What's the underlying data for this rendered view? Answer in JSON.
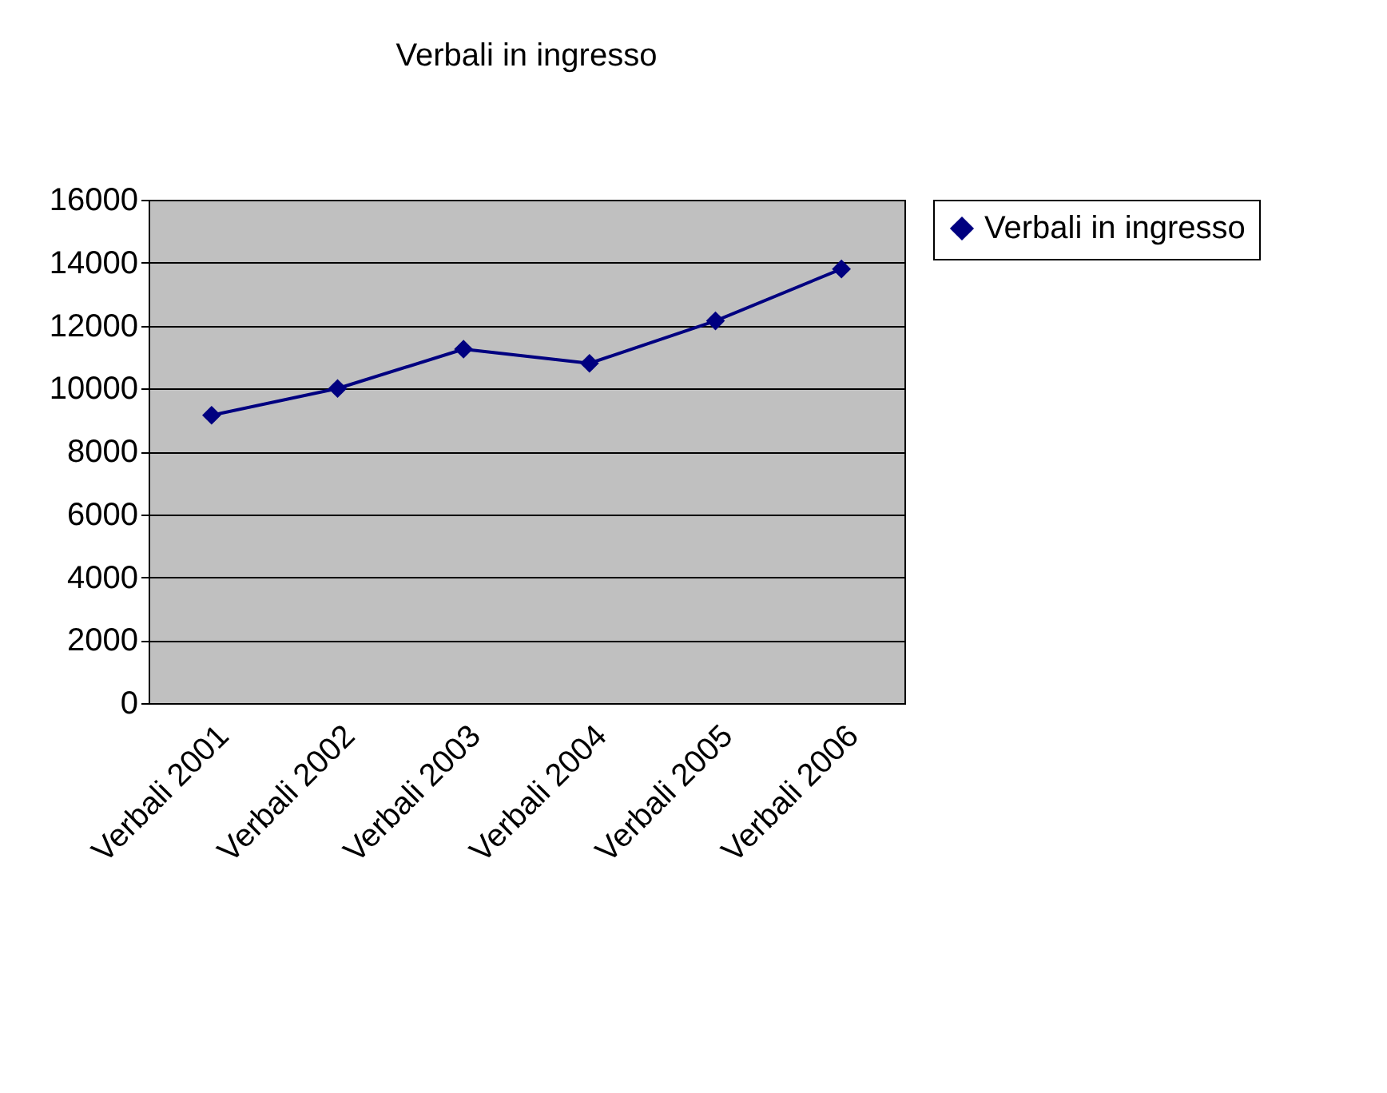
{
  "chart_data": {
    "type": "line",
    "title": "Verbali in ingresso",
    "categories": [
      "Verbali 2001",
      "Verbali 2002",
      "Verbali 2003",
      "Verbali 2004",
      "Verbali 2005",
      "Verbali 2006"
    ],
    "series": [
      {
        "name": "Verbali in ingresso",
        "color": "#000080",
        "values": [
          9150,
          10000,
          11250,
          10800,
          12150,
          13800
        ]
      }
    ],
    "ylim": [
      0,
      16000
    ],
    "yticks": [
      0,
      2000,
      4000,
      6000,
      8000,
      10000,
      12000,
      14000,
      16000
    ],
    "grid": "y",
    "legend": "right",
    "marker": "diamond",
    "line_style": "solid"
  }
}
